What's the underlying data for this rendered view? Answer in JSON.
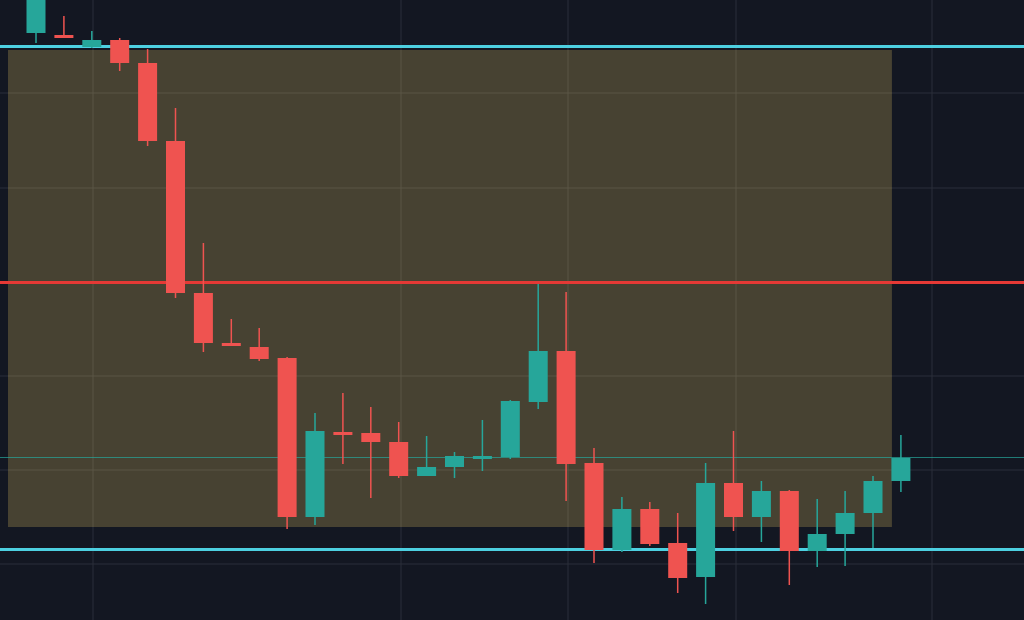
{
  "chart_data": {
    "type": "candlestick",
    "title": "",
    "xlabel": "",
    "ylabel": "",
    "ylim": [
      0,
      620
    ],
    "grid": true,
    "colors": {
      "background": "#131722",
      "grid": "#2a2e39",
      "up": "#26a69a",
      "down": "#ef5350",
      "zone_fill": "#4a4434",
      "support_resistance": "#4dd0e1",
      "key_level": "#e53935",
      "current_price_line": "#26a69a"
    },
    "horizontal_levels": [
      {
        "name": "upper-cyan-level",
        "value": 573.5,
        "color": "#4dd0e1"
      },
      {
        "name": "red-level",
        "value": 337.5,
        "color": "#e53935"
      },
      {
        "name": "lower-cyan-level",
        "value": 70.5,
        "color": "#4dd0e1"
      },
      {
        "name": "current-price-line",
        "value": 162.5,
        "color": "#26a69a"
      }
    ],
    "zone": {
      "start_index": 0,
      "end_index": 31,
      "low": 93,
      "high": 570
    },
    "candles": [
      {
        "o": 587,
        "h": 620,
        "l": 577,
        "c": 620
      },
      {
        "o": 585,
        "h": 604,
        "l": 583,
        "c": 583
      },
      {
        "o": 573,
        "h": 589,
        "l": 572,
        "c": 580
      },
      {
        "o": 580,
        "h": 582,
        "l": 549,
        "c": 557
      },
      {
        "o": 557,
        "h": 571,
        "l": 474,
        "c": 479
      },
      {
        "o": 479,
        "h": 512,
        "l": 322,
        "c": 327
      },
      {
        "o": 327,
        "h": 377,
        "l": 268,
        "c": 277
      },
      {
        "o": 277,
        "h": 301,
        "l": 274,
        "c": 274
      },
      {
        "o": 273,
        "h": 292,
        "l": 259,
        "c": 261
      },
      {
        "o": 262,
        "h": 263,
        "l": 91,
        "c": 103
      },
      {
        "o": 103,
        "h": 207,
        "l": 95,
        "c": 189
      },
      {
        "o": 188,
        "h": 227,
        "l": 156,
        "c": 187
      },
      {
        "o": 187,
        "h": 213,
        "l": 122,
        "c": 178
      },
      {
        "o": 178,
        "h": 198,
        "l": 142,
        "c": 144
      },
      {
        "o": 144,
        "h": 184,
        "l": 144,
        "c": 153
      },
      {
        "o": 153,
        "h": 168,
        "l": 142,
        "c": 164
      },
      {
        "o": 164,
        "h": 200,
        "l": 149,
        "c": 164
      },
      {
        "o": 163,
        "h": 220,
        "l": 161,
        "c": 219
      },
      {
        "o": 218,
        "h": 336,
        "l": 211,
        "c": 269
      },
      {
        "o": 269,
        "h": 328,
        "l": 119,
        "c": 156
      },
      {
        "o": 157,
        "h": 172,
        "l": 57,
        "c": 70
      },
      {
        "o": 70,
        "h": 123,
        "l": 68,
        "c": 111
      },
      {
        "o": 111,
        "h": 118,
        "l": 74,
        "c": 76
      },
      {
        "o": 77,
        "h": 107,
        "l": 27,
        "c": 42
      },
      {
        "o": 43,
        "h": 157,
        "l": 16,
        "c": 137
      },
      {
        "o": 137,
        "h": 189,
        "l": 89,
        "c": 103
      },
      {
        "o": 103,
        "h": 139,
        "l": 78,
        "c": 129
      },
      {
        "o": 129,
        "h": 130,
        "l": 35,
        "c": 69
      },
      {
        "o": 69,
        "h": 121,
        "l": 53,
        "c": 86
      },
      {
        "o": 86,
        "h": 129,
        "l": 54,
        "c": 107
      },
      {
        "o": 107,
        "h": 144,
        "l": 72,
        "c": 139
      },
      {
        "o": 139,
        "h": 185,
        "l": 128,
        "c": 162
      }
    ]
  }
}
